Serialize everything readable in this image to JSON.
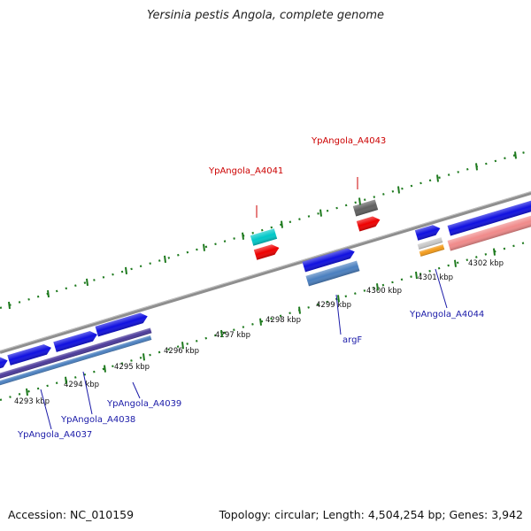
{
  "title": "Yersinia pestis Angola, complete genome",
  "footer": {
    "accession": "Accession: NC_010159",
    "summary": "Topology: circular; Length: 4,504,254 bp; Genes: 3,942"
  },
  "colors": {
    "backbone": "#8a8a8a",
    "ticks": "#1e7a1e",
    "label_forward": "#cc0000",
    "label_reverse": "#1a1aa8",
    "gene_blue": "#1010e0",
    "gene_red": "#ee0000",
    "gene_cyan": "#00c8c8",
    "gene_gray": "#606060",
    "gene_steel": "#4a7fbf",
    "gene_purple": "#4b3a9a",
    "gene_pink": "#f08a8a",
    "gene_orange": "#f29a1a",
    "gene_lightgray": "#c8c8c8"
  },
  "kbp_ticks": [
    {
      "label": "4293 kbp"
    },
    {
      "label": "4294 kbp"
    },
    {
      "label": "4295 kbp"
    },
    {
      "label": "4296 kbp"
    },
    {
      "label": "4297 kbp"
    },
    {
      "label": "4298 kbp"
    },
    {
      "label": "4299 kbp"
    },
    {
      "label": "4300 kbp"
    },
    {
      "label": "4301 kbp"
    },
    {
      "label": "4302 kbp"
    }
  ],
  "gene_labels": {
    "a4041": "YpAngola_A4041",
    "a4043": "YpAngola_A4043",
    "a4044": "YpAngola_A4044",
    "argF": "argF",
    "a4039": "YpAngola_A4039",
    "a4038": "YpAngola_A4038",
    "a4037": "YpAngola_A4037"
  }
}
